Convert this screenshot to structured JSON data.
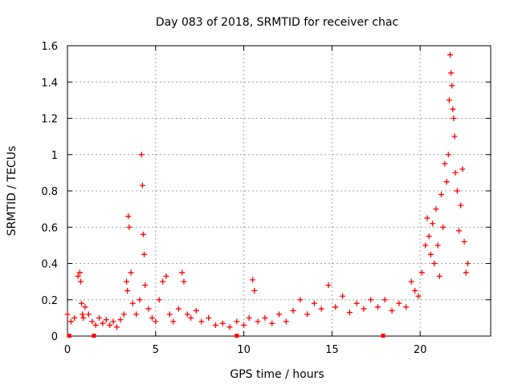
{
  "chart_data": {
    "type": "scatter",
    "title": "Day 083 of 2018, SRMTID for receiver chac",
    "xlabel": "GPS time / hours",
    "ylabel": "SRMTID / TECUs",
    "xlim": [
      0,
      24
    ],
    "ylim": [
      0,
      1.6
    ],
    "xticks": [
      0,
      5,
      10,
      15,
      20
    ],
    "xtick_labels": [
      "0",
      "5",
      "10",
      "15",
      "20"
    ],
    "yticks": [
      0,
      0.2,
      0.4,
      0.6,
      0.8,
      1,
      1.2,
      1.4,
      1.6
    ],
    "ytick_labels": [
      "0",
      "0.2",
      "0.4",
      "0.6",
      "0.8",
      "1",
      "1.2",
      "1.4",
      "1.6"
    ],
    "grid": true,
    "marker": "+",
    "series": [
      {
        "name": "SRMTID",
        "color": "#ff0000",
        "x": [
          0.0,
          0.2,
          0.4,
          0.6,
          0.7,
          0.75,
          0.8,
          0.85,
          0.9,
          1.0,
          1.2,
          1.4,
          1.6,
          1.8,
          2.0,
          2.2,
          2.4,
          2.6,
          2.8,
          3.0,
          3.2,
          3.35,
          3.4,
          3.45,
          3.5,
          3.6,
          3.7,
          3.9,
          4.1,
          4.2,
          4.25,
          4.3,
          4.35,
          4.4,
          4.6,
          4.8,
          5.0,
          5.2,
          5.4,
          5.6,
          5.8,
          6.0,
          6.3,
          6.5,
          6.6,
          6.8,
          7.0,
          7.3,
          7.6,
          8.0,
          8.4,
          8.8,
          9.2,
          9.6,
          10.0,
          10.3,
          10.5,
          10.6,
          10.8,
          11.2,
          11.6,
          12.0,
          12.4,
          12.8,
          13.2,
          13.6,
          14.0,
          14.4,
          14.8,
          15.2,
          15.6,
          16.0,
          16.4,
          16.8,
          17.2,
          17.6,
          18.0,
          18.4,
          18.8,
          19.2,
          19.5,
          19.7,
          19.9,
          20.1,
          20.3,
          20.4,
          20.5,
          20.6,
          20.7,
          20.8,
          20.9,
          21.0,
          21.1,
          21.2,
          21.3,
          21.4,
          21.5,
          21.6,
          21.65,
          21.7,
          21.75,
          21.8,
          21.85,
          21.9,
          21.95,
          22.0,
          22.1,
          22.2,
          22.3,
          22.4,
          22.5,
          22.6,
          22.7
        ],
        "y": [
          0.12,
          0.08,
          0.1,
          0.33,
          0.35,
          0.3,
          0.18,
          0.12,
          0.1,
          0.16,
          0.12,
          0.08,
          0.06,
          0.1,
          0.07,
          0.09,
          0.06,
          0.08,
          0.05,
          0.09,
          0.12,
          0.3,
          0.25,
          0.66,
          0.6,
          0.35,
          0.18,
          0.12,
          0.2,
          1.0,
          0.83,
          0.56,
          0.45,
          0.28,
          0.15,
          0.1,
          0.08,
          0.2,
          0.3,
          0.33,
          0.12,
          0.08,
          0.15,
          0.35,
          0.3,
          0.12,
          0.1,
          0.14,
          0.08,
          0.1,
          0.06,
          0.07,
          0.05,
          0.08,
          0.06,
          0.1,
          0.31,
          0.25,
          0.08,
          0.1,
          0.07,
          0.12,
          0.08,
          0.14,
          0.2,
          0.12,
          0.18,
          0.15,
          0.28,
          0.16,
          0.22,
          0.13,
          0.18,
          0.15,
          0.2,
          0.16,
          0.2,
          0.14,
          0.18,
          0.16,
          0.3,
          0.25,
          0.22,
          0.35,
          0.5,
          0.65,
          0.55,
          0.45,
          0.62,
          0.4,
          0.7,
          0.5,
          0.33,
          0.78,
          0.6,
          0.95,
          0.85,
          1.0,
          1.3,
          1.55,
          1.45,
          1.38,
          1.25,
          1.2,
          1.1,
          0.9,
          0.8,
          0.58,
          0.72,
          0.92,
          0.52,
          0.35,
          0.4
        ]
      }
    ],
    "bottom_markers_x": [
      0.1,
      1.5,
      9.6,
      17.9
    ]
  }
}
